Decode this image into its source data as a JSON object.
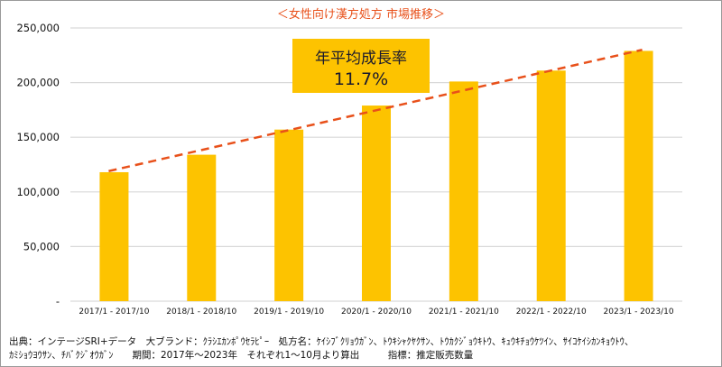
{
  "chart_data": {
    "type": "bar",
    "title": "＜女性向け漢方処方 市場推移＞",
    "categories": [
      "2017/1 - 2017/10",
      "2018/1 - 2018/10",
      "2019/1 - 2019/10",
      "2020/1 - 2020/10",
      "2021/1 - 2021/10",
      "2022/1 - 2022/10",
      "2023/1 - 2023/10"
    ],
    "values": [
      118000,
      134000,
      157000,
      179000,
      201000,
      211000,
      229000
    ],
    "ylim": [
      0,
      250000
    ],
    "yticks": [
      0,
      50000,
      100000,
      150000,
      200000,
      250000
    ],
    "ytick_labels": [
      "-",
      "50,000",
      "100,000",
      "150,000",
      "200,000",
      "250,000"
    ],
    "trendline": {
      "start": 119000,
      "end": 230000,
      "style": "dashed"
    },
    "annotation": {
      "line1": "年平均成長率",
      "line2": "11.7%"
    },
    "grid": true,
    "xlabel": "",
    "ylabel": "",
    "colors": {
      "bar": "#fdc300",
      "trend": "#e8501a",
      "grid": "#d9d9d9",
      "title": "#e8501a"
    }
  },
  "source": {
    "line1": "出典：インテージSRI+データ　大ブランド：ｸﾗｼｴｶﾝﾎﾟｳｾﾗﾋﾟｰ　処方名：ｹｲｼﾌﾞｸﾘｮｳｶﾞﾝ、ﾄｳｷｼｬｸﾔｸｻﾝ、ﾄｳｶｸｼﾞｮｳｷﾄｳ、ｷｭｳｷﾁｮｳｹﾂｲﾝ、ｻｲｺｹｲｼｶﾝｷｮｳﾄｳ、",
    "line2": "ｶﾐｼｮｳﾖｳｻﾝ、ﾁﾊﾞｸｼﾞｵｳｶﾞﾝ　　期間：2017年～2023年　それぞれ1～10月より算出　　　指標：推定販売数量"
  }
}
